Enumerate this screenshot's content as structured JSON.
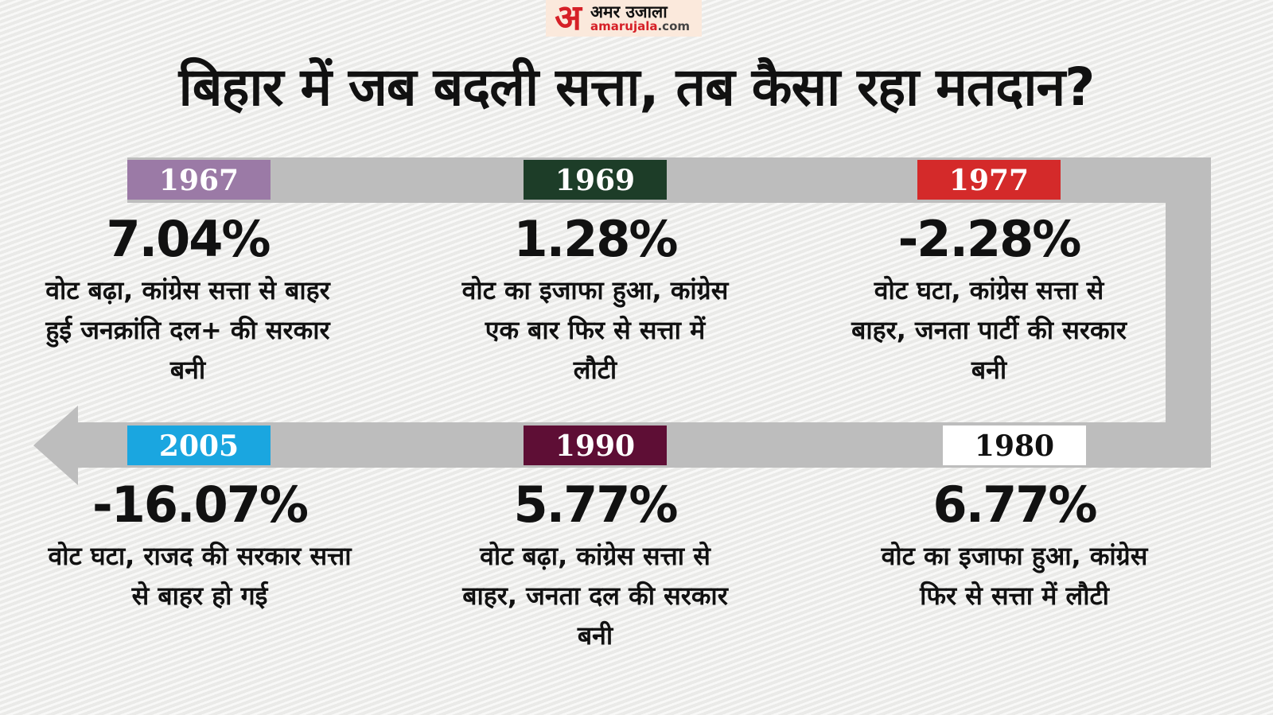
{
  "logo": {
    "hindi": "अमर उजाला",
    "mark": "अ",
    "domain_main": "amarujala",
    "domain_tld": ".com"
  },
  "title": "बिहार में जब बदली सत्ता, तब कैसा रहा मतदान?",
  "colors": {
    "band": "#bdbdbd",
    "accent": "#d62027"
  },
  "events": [
    {
      "year": "1967",
      "color": "#9b7aa6",
      "change": "7.04%",
      "description": "वोट बढ़ा, कांग्रेस सत्ता से बाहर हुई जनक्रांति दल+ की सरकार बनी"
    },
    {
      "year": "1969",
      "color": "#1d3d28",
      "change": "1.28%",
      "description": "वोट का इजाफा हुआ, कांग्रेस एक बार फिर से सत्ता में लौटी"
    },
    {
      "year": "1977",
      "color": "#d42a2a",
      "change": "-2.28%",
      "description": "वोट घटा, कांग्रेस सत्ता से बाहर, जनता पार्टी की सरकार बनी"
    },
    {
      "year": "1980",
      "color": "#ffffff",
      "change": "6.77%",
      "description": "वोट का इजाफा हुआ, कांग्रेस फिर से सत्ता में लौटी"
    },
    {
      "year": "1990",
      "color": "#5e0e35",
      "change": "5.77%",
      "description": "वोट बढ़ा, कांग्रेस सत्ता से बाहर, जनता दल की सरकार बनी"
    },
    {
      "year": "2005",
      "color": "#1aa6e0",
      "change": "-16.07%",
      "description": "वोट घटा, राजद की सरकार सत्ता से बाहर हो गई"
    }
  ]
}
